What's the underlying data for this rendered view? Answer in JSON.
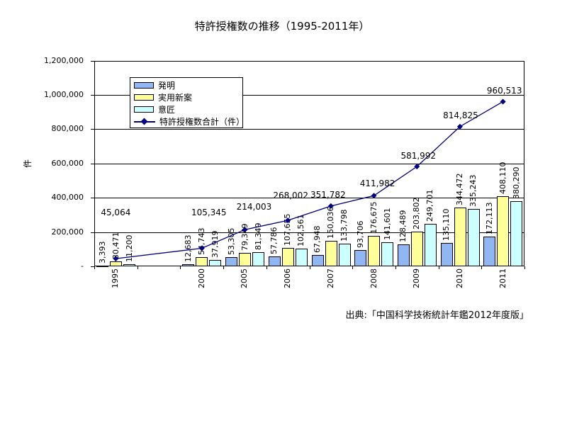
{
  "title": "特許授権数の推移（1995-2011年）",
  "source": "出典:「中国科学技術統計年鑑2012年度版」",
  "y_axis_title": "件",
  "colors": {
    "invention": "#90B7F4",
    "utility_model": "#FFFF99",
    "design": "#CCFFFF",
    "total_line": "#000080",
    "axis": "#000000",
    "background": "#FFFFFF"
  },
  "legend": {
    "items": [
      {
        "label": "発明",
        "key": "invention",
        "type": "bar"
      },
      {
        "label": "実用新案",
        "key": "utility_model",
        "type": "bar"
      },
      {
        "label": "意匠",
        "key": "design",
        "type": "bar"
      },
      {
        "label": "特許授権数合計（件）",
        "key": "total",
        "type": "line"
      }
    ]
  },
  "chart_data": {
    "type": "bar",
    "title": "特許授権数の推移（1995-2011年）",
    "xlabel": "",
    "ylabel": "件",
    "categories": [
      "1995",
      "2000",
      "2005",
      "2006",
      "2007",
      "2008",
      "2009",
      "2010",
      "2011"
    ],
    "series": [
      {
        "name": "発明",
        "key": "invention",
        "values": [
          3393,
          12683,
          53305,
          57786,
          67948,
          93706,
          128489,
          135110,
          172113
        ]
      },
      {
        "name": "実用新案",
        "key": "utility_model",
        "values": [
          30471,
          54743,
          79349,
          107655,
          150036,
          176675,
          203802,
          344472,
          408110
        ]
      },
      {
        "name": "意匠",
        "key": "design",
        "values": [
          11200,
          37919,
          81349,
          102561,
          133798,
          141601,
          249701,
          335243,
          380290
        ]
      }
    ],
    "line_series": {
      "name": "特許授権数合計（件）",
      "values": [
        45064,
        105345,
        214003,
        268002,
        351782,
        411982,
        581992,
        814825,
        960513
      ]
    },
    "ylim": [
      0,
      1200000
    ],
    "y_ticks": [
      0,
      200000,
      400000,
      600000,
      800000,
      1000000,
      1200000
    ],
    "y_tick_labels": [
      "-",
      "200,000",
      "400,000",
      "600,000",
      "800,000",
      "1,000,000",
      "1,200,000"
    ],
    "grid": true,
    "legend_position": "top-left-inside",
    "data_labels": "rotated-90-above-bars"
  }
}
